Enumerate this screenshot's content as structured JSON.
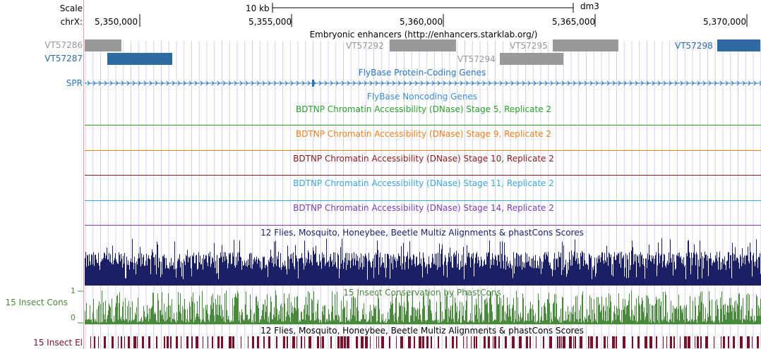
{
  "header": {
    "scale_label": "Scale",
    "scale_value": "10 kb",
    "assembly": "dm3",
    "chrom_label": "chrX:",
    "ticks": [
      "5,350,000",
      "5,355,000",
      "5,360,000",
      "5,365,000",
      "5,370,000"
    ]
  },
  "tracks": {
    "enhancers": {
      "title": "Embryonic enhancers (http://enhancers.starklab.org/)",
      "items": [
        {
          "label": "VT57286",
          "color": "#999999"
        },
        {
          "label": "VT57287",
          "color": "#2f6aa0"
        },
        {
          "label": "VT57292",
          "color": "#999999"
        },
        {
          "label": "VT57295",
          "color": "#999999"
        },
        {
          "label": "VT57294",
          "color": "#999999"
        },
        {
          "label": "VT57298",
          "color": "#2f6aa0"
        }
      ]
    },
    "genes": {
      "title": "FlyBase Protein-Coding Genes",
      "gene_label": "SPR",
      "color": "#2c74c0"
    },
    "noncoding": {
      "title": "FlyBase Noncoding Genes",
      "color": "#3f8fd2"
    },
    "dnase": [
      {
        "title": "BDTNP Chromatin Accessibility (DNase) Stage 5, Replicate 2",
        "color": "#2ca02c"
      },
      {
        "title": "BDTNP Chromatin Accessibility (DNase) Stage 9, Replicate 2",
        "color": "#f07f1f"
      },
      {
        "title": "BDTNP Chromatin Accessibility (DNase) Stage 10, Replicate 2",
        "color": "#8b1a1a"
      },
      {
        "title": "BDTNP Chromatin Accessibility (DNase) Stage 11, Replicate 2",
        "color": "#3fa7d6"
      },
      {
        "title": "BDTNP Chromatin Accessibility (DNase) Stage 14, Replicate 2",
        "color": "#7a3fae"
      }
    ],
    "multiz": {
      "title": "12 Flies, Mosquito, Honeybee, Beetle Multiz Alignments & phastCons Scores",
      "color": "#1a1f66"
    },
    "cons": {
      "title": "15 Insect Conservation by PhastCons",
      "label": "15 Insect Cons",
      "axis_max": "1",
      "axis_min": "0",
      "color": "#4a8a3c"
    },
    "elements": {
      "title": "12 Flies, Mosquito, Honeybee, Beetle Multiz Alignments & phastCons Scores",
      "label": "15 Insect El",
      "color": "#7a0f2a"
    }
  }
}
